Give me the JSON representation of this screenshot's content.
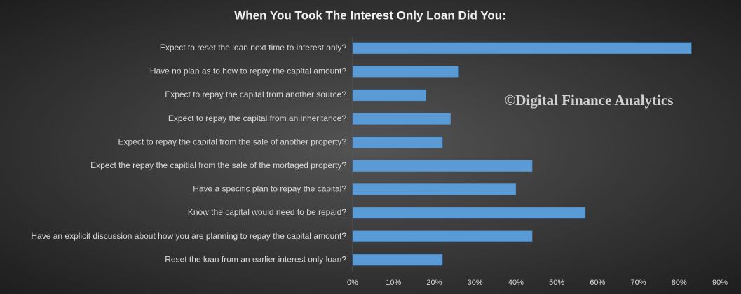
{
  "chart_data": {
    "type": "hbar",
    "title": "When You Took The Interest Only Loan Did You:",
    "watermark": "©Digital Finance Analytics",
    "categories": [
      "Expect to reset the loan next time to interest only?",
      "Have no plan as to how to repay the capital amount?",
      "Expect to repay the capital from another source?",
      "Expect to repay the capital from an inheritance?",
      "Expect to repay the capital from the sale of another property?",
      "Expect the repay the capitial from the sale of the mortaged property?",
      "Have a specific plan to repay the capital?",
      "Know the capital would need to be repaid?",
      "Have an explicit discussion about how you are planning to repay the capital amount?",
      "Reset the loan from an earlier interest only loan?"
    ],
    "values": [
      83,
      26,
      18,
      24,
      22,
      44,
      40,
      57,
      44,
      22
    ],
    "color": "#5b9bd5",
    "xlim": [
      0,
      90
    ],
    "xticks": [
      {
        "value": 0,
        "label": "0%"
      },
      {
        "value": 10,
        "label": "10%"
      },
      {
        "value": 20,
        "label": "20%"
      },
      {
        "value": 30,
        "label": "30%"
      },
      {
        "value": 40,
        "label": "40%"
      },
      {
        "value": 50,
        "label": "50%"
      },
      {
        "value": 60,
        "label": "60%"
      },
      {
        "value": 70,
        "label": "70%"
      },
      {
        "value": 80,
        "label": "80%"
      },
      {
        "value": 90,
        "label": "90%"
      }
    ],
    "grid": false
  }
}
